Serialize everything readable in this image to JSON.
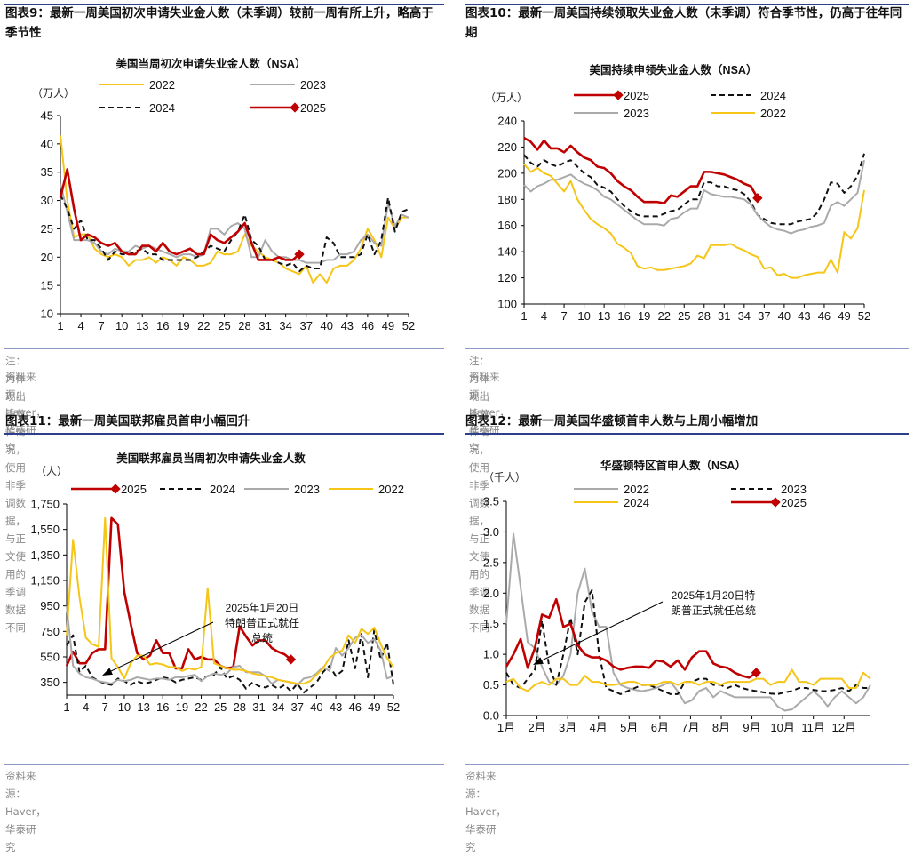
{
  "panels": [
    {
      "title": "图表9：最新一周美国初次申请失业金人数（未季调）较前一周有所上升，略高于季节性",
      "notes": [
        "注：为体现出季节性情况，使用非季调数据，与正文使用的季调数据不同",
        "资料来源：Haver，华泰研究"
      ]
    },
    {
      "title": "图表10：最新一周美国持续领取失业金人数（未季调）符合季节性，仍高于往年同期",
      "notes": [
        "注：为体现出季节性情况，使用非季调数据，与正文使用的季调数据不同",
        "资料来源：Haver，华泰研究"
      ]
    },
    {
      "title": "图表11：最新一周美国联邦雇员首申小幅回升",
      "notes": [
        "资料来源：Haver，华泰研究"
      ]
    },
    {
      "title": "图表12：最新一周美国华盛顿首申人数与上周小幅增加",
      "notes": [
        "资料来源：Haver，华泰研究"
      ]
    }
  ],
  "chart_data": [
    {
      "type": "line",
      "title": "美国当周初次申请失业金人数（NSA）",
      "ylabel": "（万人）",
      "ylim": [
        10,
        45
      ],
      "yticks": [
        10,
        15,
        20,
        25,
        30,
        35,
        40,
        45
      ],
      "xlim": [
        1,
        52
      ],
      "xticks": [
        1,
        4,
        7,
        10,
        13,
        16,
        19,
        22,
        25,
        28,
        31,
        34,
        37,
        40,
        43,
        46,
        49,
        52
      ],
      "legend": [
        "2022",
        "2023",
        "2024",
        "2025"
      ],
      "series": [
        {
          "name": "2022",
          "color": "#f5c518",
          "style": "solid",
          "values": [
            41.5,
            30,
            23.5,
            24,
            24,
            21.5,
            20.5,
            20,
            20.5,
            20,
            18.5,
            19.5,
            19.5,
            20,
            19,
            20,
            19.5,
            18.5,
            20,
            19.5,
            18.5,
            18.5,
            19,
            21,
            20.5,
            20.5,
            21,
            24,
            22,
            21,
            20,
            19.5,
            19,
            18,
            17.5,
            17,
            18.5,
            15.5,
            17,
            15.5,
            18,
            18.5,
            18.5,
            19.5,
            21.5,
            25,
            23,
            20,
            27,
            25,
            27,
            27
          ]
        },
        {
          "name": "2023",
          "color": "#aaaaaa",
          "style": "solid",
          "values": [
            33,
            28,
            23,
            23,
            23,
            22.5,
            21,
            20.5,
            21.5,
            21,
            21,
            22,
            21.5,
            22,
            21.5,
            21,
            20.5,
            20,
            20.5,
            20.5,
            20,
            20.5,
            25,
            25,
            24,
            25.5,
            26,
            25,
            20,
            20,
            23,
            21,
            20,
            20,
            19.5,
            19.5,
            19,
            19,
            19,
            19.5,
            19.5,
            20.5,
            20.5,
            21,
            23,
            24,
            22.5,
            22,
            29.5,
            25.5,
            27.5,
            27
          ]
        },
        {
          "name": "2024",
          "color": "#111111",
          "style": "dashed",
          "values": [
            31,
            28.5,
            25,
            26.5,
            23,
            23,
            21.5,
            19.5,
            21,
            20.5,
            20.5,
            21,
            21.5,
            20.5,
            20.5,
            19.5,
            19.5,
            19.5,
            19.5,
            19.5,
            20,
            21,
            22,
            21.5,
            21,
            23,
            24.5,
            27.5,
            23,
            22,
            19.5,
            19.5,
            19,
            18.5,
            19,
            17.5,
            18.5,
            18,
            18,
            23.5,
            22.5,
            20,
            20,
            20,
            20.5,
            24,
            20.5,
            23,
            30.5,
            24.5,
            28,
            28.5
          ]
        },
        {
          "name": "2025",
          "color": "#c00000",
          "style": "solid",
          "values": [
            30.5,
            35.5,
            28.5,
            23,
            24,
            23.5,
            22.5,
            22,
            22.5,
            21,
            20.5,
            20.5,
            22,
            22,
            21,
            22.5,
            21,
            20.5,
            21,
            21.5,
            20.5,
            20.5,
            24,
            23,
            22.5,
            23.5,
            24.5,
            26,
            22.5,
            19.5,
            19.5,
            19.5,
            20,
            19.5,
            19.5,
            20.5
          ]
        }
      ]
    },
    {
      "type": "line",
      "title": "美国持续申领失业金人数（NSA）",
      "ylabel": "（万人）",
      "ylim": [
        100,
        240
      ],
      "yticks": [
        100,
        120,
        140,
        160,
        180,
        200,
        220,
        240
      ],
      "xlim": [
        1,
        52
      ],
      "xticks": [
        1,
        4,
        7,
        10,
        13,
        16,
        19,
        22,
        25,
        28,
        31,
        34,
        37,
        40,
        43,
        46,
        49,
        52
      ],
      "legend": [
        "2025",
        "2024",
        "2023",
        "2022"
      ],
      "series": [
        {
          "name": "2025",
          "color": "#c00000",
          "style": "solid",
          "values": [
            227,
            224,
            218,
            225,
            219,
            219,
            216,
            221,
            216,
            212,
            210,
            205,
            204,
            200,
            194,
            190,
            187,
            182,
            178,
            178,
            178,
            177,
            183,
            182,
            186,
            190,
            190,
            201,
            201,
            200,
            199,
            197,
            195,
            192,
            190,
            181
          ]
        },
        {
          "name": "2024",
          "color": "#111111",
          "style": "dashed",
          "values": [
            214,
            208,
            205,
            210,
            207,
            205,
            208,
            210,
            205,
            200,
            197,
            191,
            189,
            186,
            180,
            175,
            171,
            168,
            167,
            167,
            167,
            169,
            171,
            172,
            176,
            180,
            180,
            193,
            193,
            190,
            190,
            188,
            187,
            184,
            178,
            168,
            165,
            162,
            161,
            161,
            161,
            163,
            164,
            165,
            170,
            180,
            193,
            192,
            185,
            190,
            198,
            215
          ]
        },
        {
          "name": "2023",
          "color": "#aaaaaa",
          "style": "solid",
          "values": [
            191,
            186,
            190,
            192,
            195,
            195,
            197,
            199,
            195,
            192,
            190,
            187,
            182,
            180,
            176,
            172,
            168,
            164,
            161,
            161,
            161,
            160,
            165,
            166,
            170,
            173,
            173,
            187,
            184,
            183,
            182,
            182,
            181,
            180,
            176,
            168,
            163,
            159,
            157,
            156,
            154,
            156,
            157,
            159,
            160,
            162,
            175,
            178,
            175,
            180,
            185,
            210
          ]
        },
        {
          "name": "2022",
          "color": "#f5c518",
          "style": "solid",
          "values": [
            207,
            201,
            204,
            200,
            198,
            192,
            186,
            194,
            180,
            172,
            165,
            161,
            158,
            154,
            146,
            143,
            139,
            129,
            127,
            128,
            126,
            126,
            127,
            128,
            129,
            131,
            137,
            135,
            145,
            145,
            145,
            146,
            143,
            141,
            138,
            136,
            127,
            128,
            122,
            123,
            120,
            120,
            122,
            123,
            124,
            124,
            134,
            124,
            155,
            150,
            158,
            187
          ]
        }
      ]
    },
    {
      "type": "line",
      "title": "美国联邦雇员当周初次申请失业金人数",
      "ylabel": "（人）",
      "ylim": [
        250,
        1750
      ],
      "yticks": [
        350,
        550,
        750,
        950,
        1150,
        1350,
        1550,
        1750
      ],
      "ytick_labels": [
        "350",
        "550",
        "750",
        "950",
        "1,150",
        "1,350",
        "1,550",
        "1,750"
      ],
      "xlim": [
        1,
        52
      ],
      "xticks": [
        1,
        4,
        7,
        10,
        13,
        16,
        19,
        22,
        25,
        28,
        31,
        34,
        37,
        40,
        43,
        46,
        49,
        52
      ],
      "legend": [
        "2025",
        "2024",
        "2023",
        "2022"
      ],
      "annotation": "2025年1月20日特朗普正式就任总统",
      "series": [
        {
          "name": "2025",
          "color": "#c00000",
          "style": "solid",
          "values": [
            480,
            590,
            500,
            500,
            580,
            610,
            610,
            1640,
            1590,
            1060,
            810,
            580,
            530,
            560,
            680,
            580,
            580,
            460,
            460,
            610,
            530,
            550,
            530,
            530,
            480,
            460,
            470,
            790,
            710,
            640,
            680,
            680,
            620,
            590,
            570,
            530
          ]
        },
        {
          "name": "2024",
          "color": "#111111",
          "style": "dashed",
          "values": [
            640,
            720,
            430,
            480,
            390,
            360,
            340,
            330,
            380,
            360,
            330,
            360,
            340,
            350,
            370,
            390,
            380,
            350,
            370,
            380,
            390,
            370,
            400,
            410,
            470,
            380,
            400,
            370,
            300,
            350,
            320,
            310,
            330,
            300,
            330,
            280,
            340,
            270,
            310,
            350,
            430,
            480,
            400,
            440,
            680,
            460,
            730,
            390,
            760,
            530,
            660,
            330
          ]
        },
        {
          "name": "2023",
          "color": "#aaaaaa",
          "style": "solid",
          "values": [
            950,
            480,
            420,
            390,
            380,
            360,
            350,
            340,
            370,
            360,
            370,
            390,
            380,
            370,
            380,
            380,
            370,
            390,
            390,
            400,
            410,
            360,
            400,
            420,
            410,
            420,
            470,
            480,
            430,
            430,
            430,
            400,
            340,
            370,
            360,
            350,
            330,
            380,
            390,
            420,
            470,
            440,
            620,
            560,
            620,
            700,
            720,
            660,
            690,
            600,
            380,
            400
          ]
        },
        {
          "name": "2022",
          "color": "#f5c518",
          "style": "solid",
          "values": [
            720,
            1470,
            1020,
            700,
            650,
            630,
            1640,
            540,
            470,
            380,
            500,
            560,
            560,
            490,
            500,
            490,
            470,
            470,
            440,
            460,
            450,
            470,
            1090,
            500,
            480,
            460,
            450,
            450,
            440,
            420,
            410,
            400,
            390,
            370,
            360,
            350,
            340,
            340,
            360,
            410,
            460,
            540,
            580,
            600,
            720,
            660,
            770,
            730,
            780,
            650,
            540,
            470
          ]
        }
      ]
    },
    {
      "type": "line",
      "title": "华盛顿特区首申人数（NSA）",
      "ylabel": "（千人）",
      "ylim": [
        0.0,
        3.5
      ],
      "yticks": [
        0.0,
        0.5,
        1.0,
        1.5,
        2.0,
        2.5,
        3.0,
        3.5
      ],
      "ytick_labels": [
        "0.0",
        "0.5",
        "1.0",
        "1.5",
        "2.0",
        "2.5",
        "3.0",
        "3.5"
      ],
      "xlim": [
        1,
        52
      ],
      "xticks": [
        1,
        5.3,
        9.6,
        13.9,
        18.2,
        22.5,
        26.8,
        31.1,
        35.4,
        39.7,
        44,
        48.3
      ],
      "xtick_labels": [
        "1月",
        "2月",
        "3月",
        "4月",
        "5月",
        "6月",
        "7月",
        "8月",
        "9月",
        "10月",
        "11月",
        "12月"
      ],
      "legend": [
        "2022",
        "2023",
        "2024",
        "2025"
      ],
      "annotation": "2025年1月20日特朗普正式就任总统",
      "series": [
        {
          "name": "2022",
          "color": "#aaaaaa",
          "style": "solid",
          "values": [
            1.5,
            2.97,
            2.1,
            1.2,
            1.1,
            0.8,
            0.55,
            0.5,
            0.65,
            1.0,
            2.0,
            2.4,
            1.7,
            1.45,
            1.45,
            0.7,
            0.5,
            0.45,
            0.42,
            0.4,
            0.42,
            0.45,
            0.5,
            0.55,
            0.4,
            0.2,
            0.25,
            0.4,
            0.45,
            0.3,
            0.4,
            0.35,
            0.3,
            0.3,
            0.3,
            0.3,
            0.3,
            0.3,
            0.15,
            0.08,
            0.1,
            0.2,
            0.3,
            0.4,
            0.3,
            0.15,
            0.3,
            0.4,
            0.3,
            0.2,
            0.3,
            0.5
          ]
        },
        {
          "name": "2023",
          "color": "#111111",
          "style": "dashed",
          "values": [
            0.7,
            0.5,
            0.45,
            0.6,
            0.75,
            1.55,
            0.8,
            0.5,
            1.0,
            1.6,
            1.0,
            1.85,
            2.05,
            1.0,
            0.45,
            0.4,
            0.35,
            0.4,
            0.45,
            0.5,
            0.5,
            0.45,
            0.4,
            0.35,
            0.35,
            0.55,
            0.55,
            0.6,
            0.6,
            0.5,
            0.5,
            0.45,
            0.5,
            0.45,
            0.42,
            0.4,
            0.38,
            0.36,
            0.35,
            0.38,
            0.4,
            0.45,
            0.45,
            0.42,
            0.4,
            0.4,
            0.42,
            0.45,
            0.4,
            0.5,
            0.45,
            0.45
          ]
        },
        {
          "name": "2024",
          "color": "#f5c518",
          "style": "solid",
          "values": [
            0.55,
            0.6,
            0.45,
            0.4,
            0.5,
            0.55,
            0.5,
            0.6,
            0.6,
            0.5,
            0.5,
            0.65,
            0.55,
            0.55,
            0.5,
            0.5,
            0.52,
            0.55,
            0.55,
            0.5,
            0.5,
            0.5,
            0.55,
            0.55,
            0.5,
            0.55,
            0.55,
            0.5,
            0.55,
            0.55,
            0.5,
            0.55,
            0.55,
            0.55,
            0.55,
            0.6,
            0.6,
            0.5,
            0.55,
            0.55,
            0.75,
            0.55,
            0.55,
            0.5,
            0.6,
            0.6,
            0.6,
            0.6,
            0.45,
            0.45,
            0.7,
            0.6
          ]
        },
        {
          "name": "2025",
          "color": "#c00000",
          "style": "solid",
          "values": [
            0.8,
            1.0,
            1.25,
            0.78,
            1.1,
            1.65,
            1.6,
            1.9,
            1.45,
            1.5,
            1.15,
            1.0,
            0.95,
            0.95,
            0.9,
            0.8,
            0.75,
            0.78,
            0.8,
            0.8,
            0.78,
            0.9,
            0.88,
            0.8,
            0.9,
            0.75,
            0.95,
            1.05,
            1.05,
            0.85,
            0.8,
            0.78,
            0.7,
            0.65,
            0.62,
            0.7
          ]
        }
      ]
    }
  ]
}
